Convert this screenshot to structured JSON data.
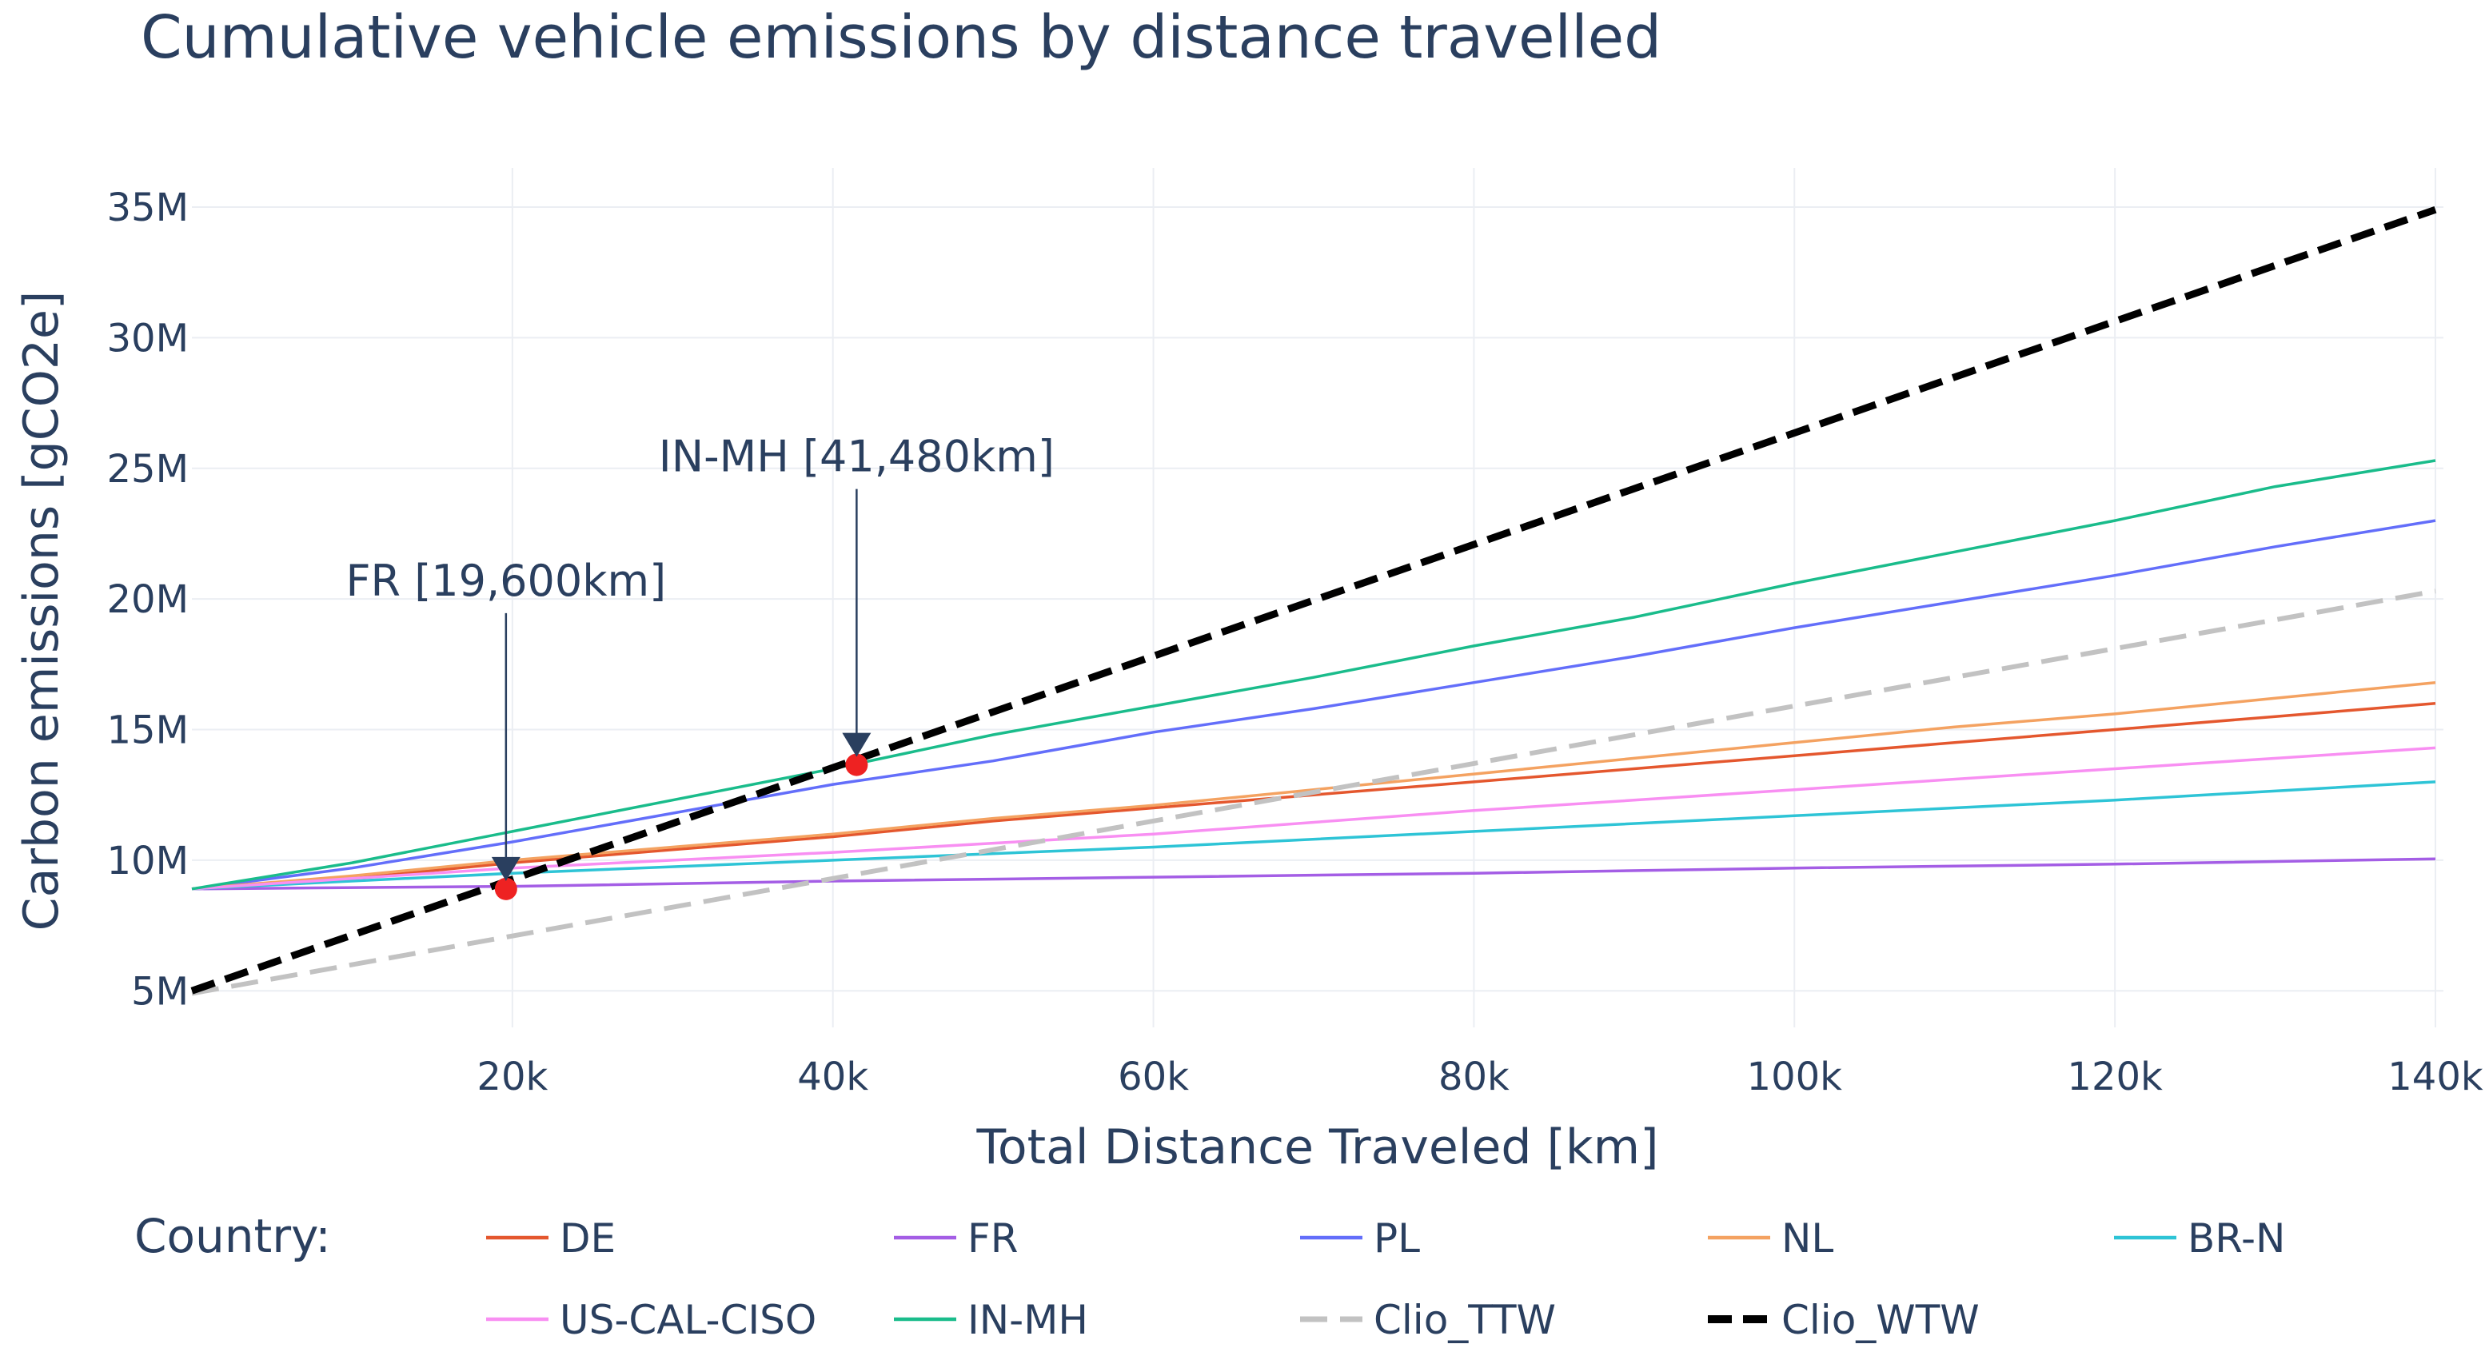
{
  "chart_data": {
    "type": "line",
    "title": "Cumulative vehicle emissions by distance travelled",
    "xlabel": "Total Distance Traveled [km]",
    "ylabel": "Carbon emissions [gCO2e]",
    "xlim": [
      0,
      140500
    ],
    "ylim": [
      3600000,
      36500000
    ],
    "xticks": [
      20000,
      40000,
      60000,
      80000,
      100000,
      120000,
      140000
    ],
    "xtick_labels": [
      "20k",
      "40k",
      "60k",
      "80k",
      "100k",
      "120k",
      "140k"
    ],
    "yticks": [
      5000000,
      10000000,
      15000000,
      20000000,
      25000000,
      30000000,
      35000000
    ],
    "ytick_labels": [
      "5M",
      "10M",
      "15M",
      "20M",
      "25M",
      "30M",
      "35M"
    ],
    "grid": true,
    "legend": {
      "title": "Country:",
      "placement": "bottom"
    },
    "series": [
      {
        "name": "DE",
        "color": "#e4572e",
        "dash": "solid",
        "x": [
          0,
          10000,
          20000,
          30000,
          40000,
          50000,
          60000,
          70000,
          80000,
          90000,
          100000,
          110000,
          120000,
          130000,
          140000
        ],
        "y": [
          8900000,
          9300000,
          9900000,
          10400000,
          10900000,
          11500000,
          12000000,
          12500000,
          13000000,
          13500000,
          14000000,
          14500000,
          15000000,
          15500000,
          16000000
        ]
      },
      {
        "name": "FR",
        "color": "#a45ee5",
        "dash": "solid",
        "x": [
          0,
          20000,
          40000,
          60000,
          80000,
          100000,
          120000,
          140000
        ],
        "y": [
          8900000,
          9000000,
          9200000,
          9350000,
          9500000,
          9700000,
          9850000,
          10050000
        ]
      },
      {
        "name": "PL",
        "color": "#636efa",
        "dash": "solid",
        "x": [
          0,
          10000,
          20000,
          30000,
          40000,
          50000,
          60000,
          70000,
          80000,
          90000,
          100000,
          110000,
          120000,
          130000,
          140000
        ],
        "y": [
          8900000,
          9700000,
          10700000,
          11800000,
          12900000,
          13800000,
          14900000,
          15800000,
          16800000,
          17800000,
          18900000,
          19900000,
          20900000,
          22000000,
          23000000
        ]
      },
      {
        "name": "NL",
        "color": "#f4a261",
        "dash": "solid",
        "x": [
          0,
          10000,
          20000,
          30000,
          40000,
          50000,
          60000,
          70000,
          80000,
          90000,
          100000,
          110000,
          120000,
          130000,
          140000
        ],
        "y": [
          8900000,
          9400000,
          10000000,
          10500000,
          11000000,
          11600000,
          12100000,
          12700000,
          13300000,
          13900000,
          14500000,
          15100000,
          15600000,
          16200000,
          16800000
        ]
      },
      {
        "name": "BR-N",
        "color": "#2ec4d6",
        "dash": "solid",
        "x": [
          0,
          20000,
          40000,
          60000,
          80000,
          100000,
          120000,
          140000
        ],
        "y": [
          8900000,
          9500000,
          10000000,
          10500000,
          11100000,
          11700000,
          12300000,
          13000000
        ]
      },
      {
        "name": "US-CAL-CISO",
        "color": "#f88ff2",
        "dash": "solid",
        "x": [
          0,
          20000,
          40000,
          60000,
          80000,
          100000,
          120000,
          140000
        ],
        "y": [
          8900000,
          9700000,
          10300000,
          11000000,
          11900000,
          12700000,
          13500000,
          14300000
        ]
      },
      {
        "name": "IN-MH",
        "color": "#1abc8b",
        "dash": "solid",
        "x": [
          0,
          10000,
          20000,
          30000,
          40000,
          50000,
          60000,
          70000,
          80000,
          90000,
          100000,
          110000,
          120000,
          130000,
          140000
        ],
        "y": [
          8900000,
          9900000,
          11100000,
          12300000,
          13500000,
          14800000,
          15900000,
          17000000,
          18200000,
          19300000,
          20600000,
          21800000,
          23000000,
          24300000,
          25300000
        ]
      },
      {
        "name": "Clio_TTW",
        "color": "#c2c2c2",
        "dash": "dashed",
        "x": [
          0,
          140000
        ],
        "y": [
          4900000,
          20300000
        ]
      },
      {
        "name": "Clio_WTW",
        "color": "#000000",
        "dash": "dashed-bold",
        "x": [
          0,
          140000
        ],
        "y": [
          5000000,
          34900000
        ]
      }
    ],
    "annotations": [
      {
        "text": "FR [19,600km]",
        "x": 19600,
        "y": 8900000
      },
      {
        "text": "IN-MH [41,480km]",
        "x": 41480,
        "y": 13650000
      }
    ]
  }
}
